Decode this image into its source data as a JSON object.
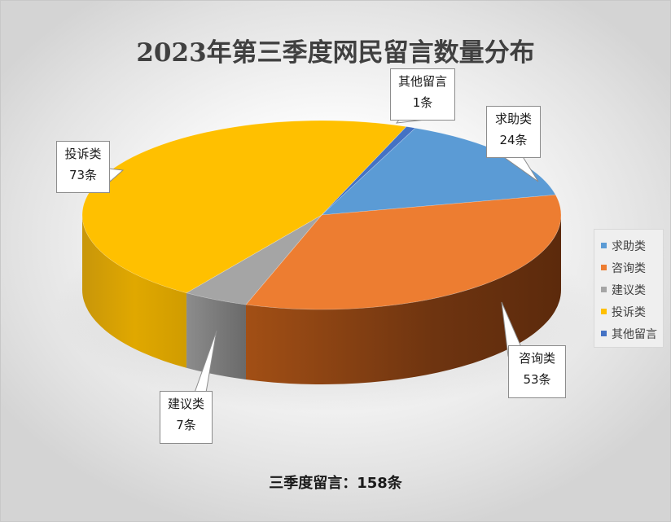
{
  "chart_data": {
    "type": "pie",
    "title": "2023年第三季度网民留言数量分布",
    "categories": [
      "求助类",
      "咨询类",
      "建议类",
      "投诉类",
      "其他留言"
    ],
    "values": [
      24,
      53,
      7,
      73,
      1
    ],
    "unit": "条",
    "colors": [
      "#5b9bd5",
      "#ed7d31",
      "#a5a5a5",
      "#ffc000",
      "#4472c4"
    ],
    "data_labels": [
      {
        "name": "求助类",
        "value": "24条"
      },
      {
        "name": "咨询类",
        "value": "53条"
      },
      {
        "name": "建议类",
        "value": "7条"
      },
      {
        "name": "投诉类",
        "value": "73条"
      },
      {
        "name": "其他留言",
        "value": "1条"
      }
    ],
    "legend_position": "right",
    "style": "3d"
  },
  "footer": "三季度留言：158条"
}
